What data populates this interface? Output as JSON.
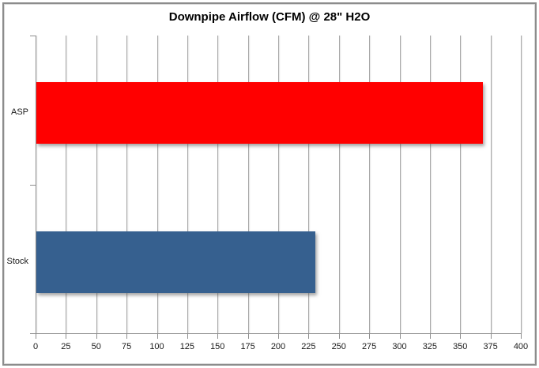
{
  "title": "Downpipe Airflow (CFM) @ 28\" H2O",
  "chart_data": {
    "type": "bar",
    "orientation": "horizontal",
    "title": "Downpipe Airflow (CFM) @ 28\" H2O",
    "categories": [
      "ASP",
      "Stock"
    ],
    "values": [
      368,
      230
    ],
    "bar_colors": [
      "#FF0000",
      "#36608F"
    ],
    "xlabel": "",
    "ylabel": "",
    "xlim": [
      0,
      400
    ],
    "x_ticks": [
      0,
      25,
      50,
      75,
      100,
      125,
      150,
      175,
      200,
      225,
      250,
      275,
      300,
      325,
      350,
      375,
      400
    ],
    "grid": "vertical gridlines on",
    "legend_position": "none"
  },
  "colors": {
    "background": "#FFFFFF",
    "frame_border": "#8C8C8C",
    "gridline": "#A8A8A8",
    "axis_line": "#8E8E8E",
    "tick_label": "#1A1A1A",
    "title_text": "#000000",
    "bar_asp": "#FF0000",
    "bar_stock": "#36608F"
  }
}
